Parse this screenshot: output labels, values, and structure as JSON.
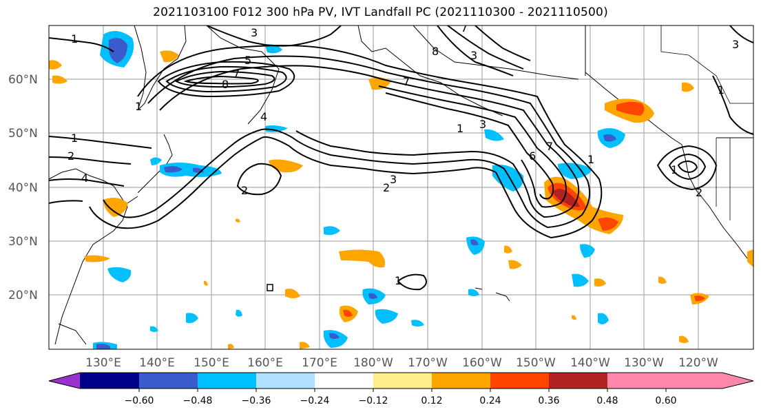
{
  "title": "2021103100 F012 300 hPa PV, IVT Landfall PC (2021110300 - 2021110500)",
  "lat_labels": [
    "60°N",
    "50°N",
    "40°N",
    "30°N",
    "20°N"
  ],
  "lon_labels": [
    "130°E",
    "140°E",
    "150°E",
    "160°E",
    "170°E",
    "180°W",
    "170°W",
    "160°W",
    "150°W",
    "140°W",
    "130°W",
    "120°W"
  ],
  "colorbar": {
    "tick_labels": [
      "−0.60",
      "−0.48",
      "−0.36",
      "−0.24",
      "−0.12",
      "0.12",
      "0.24",
      "0.36",
      "0.48",
      "0.60"
    ],
    "colors": [
      "#9932CC",
      "#00008B",
      "#3A5BCC",
      "#00BFFF",
      "#B0E2FF",
      "#FFFFFF",
      "#FFEC8B",
      "#FFA500",
      "#FF4500",
      "#B22222",
      "#FF88AA"
    ]
  },
  "contour_labels": [
    "1",
    "3",
    "5",
    "7",
    "8",
    "4",
    "1",
    "2",
    "4",
    "2",
    "3",
    "2",
    "7",
    "1",
    "3",
    "6",
    "7",
    "1",
    "2",
    "1",
    "1",
    "7",
    "8",
    "3",
    "3",
    "1",
    "1"
  ],
  "shading_colors": {
    "neg_dark": "#3A5BCC",
    "neg_mid": "#00BFFF",
    "neg_light": "#B0E2FF",
    "pos_light": "#FFEC8B",
    "pos_mid": "#FFA500",
    "pos_high": "#FF4500",
    "pos_dark": "#B22222"
  }
}
